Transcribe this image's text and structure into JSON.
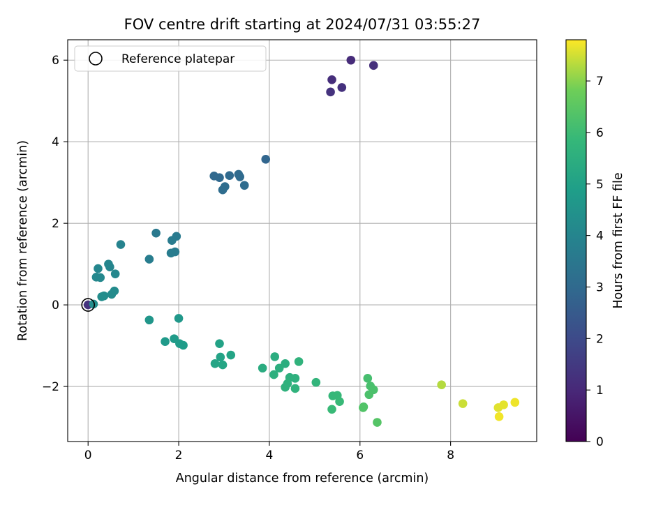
{
  "chart_data": {
    "type": "scatter",
    "title": "FOV centre drift starting at 2024/07/31 03:55:27",
    "xlabel": "Angular distance from reference (arcmin)",
    "ylabel": "Rotation from reference (arcmin)",
    "xlim": [
      -0.45,
      9.9
    ],
    "ylim": [
      -3.35,
      6.5
    ],
    "xticks": [
      0,
      2,
      4,
      6,
      8
    ],
    "yticks": [
      -2,
      0,
      2,
      4,
      6
    ],
    "xtick_labels": [
      "0",
      "2",
      "4",
      "6",
      "8"
    ],
    "ytick_labels": [
      "−2",
      "0",
      "2",
      "4",
      "6"
    ],
    "grid": true,
    "legend": {
      "placement": "top-left",
      "entries": [
        "Reference platepar"
      ]
    },
    "reference_point": {
      "x": 0,
      "y": 0
    },
    "colorbar": {
      "label": "Hours from first FF file",
      "range": [
        0,
        7.8
      ],
      "ticks": [
        0,
        1,
        2,
        3,
        4,
        5,
        6,
        7
      ],
      "tick_labels": [
        "0",
        "1",
        "2",
        "3",
        "4",
        "5",
        "6",
        "7"
      ],
      "colormap": "viridis"
    },
    "points": [
      {
        "x": 0,
        "y": 0,
        "h": 1.3
      },
      {
        "x": 5.8,
        "y": 6.0,
        "h": 1.1
      },
      {
        "x": 5.38,
        "y": 5.52,
        "h": 1.15
      },
      {
        "x": 6.3,
        "y": 5.87,
        "h": 1.2
      },
      {
        "x": 5.6,
        "y": 5.33,
        "h": 1.25
      },
      {
        "x": 5.35,
        "y": 5.22,
        "h": 1.3
      },
      {
        "x": 3.92,
        "y": 3.57,
        "h": 2.85
      },
      {
        "x": 2.78,
        "y": 3.16,
        "h": 2.95
      },
      {
        "x": 2.9,
        "y": 3.12,
        "h": 2.98
      },
      {
        "x": 3.12,
        "y": 3.17,
        "h": 3.0
      },
      {
        "x": 3.32,
        "y": 3.2,
        "h": 3.02
      },
      {
        "x": 3.35,
        "y": 3.14,
        "h": 3.05
      },
      {
        "x": 3.45,
        "y": 2.93,
        "h": 3.08
      },
      {
        "x": 3.02,
        "y": 2.9,
        "h": 3.1
      },
      {
        "x": 2.97,
        "y": 2.82,
        "h": 3.12
      },
      {
        "x": 1.5,
        "y": 1.76,
        "h": 3.55
      },
      {
        "x": 1.95,
        "y": 1.68,
        "h": 3.6
      },
      {
        "x": 1.85,
        "y": 1.58,
        "h": 3.62
      },
      {
        "x": 1.92,
        "y": 1.3,
        "h": 3.65
      },
      {
        "x": 1.83,
        "y": 1.27,
        "h": 3.68
      },
      {
        "x": 1.35,
        "y": 1.12,
        "h": 3.7
      },
      {
        "x": 0.72,
        "y": 1.48,
        "h": 3.95
      },
      {
        "x": 0.45,
        "y": 1.0,
        "h": 4.0
      },
      {
        "x": 0.48,
        "y": 0.93,
        "h": 4.02
      },
      {
        "x": 0.22,
        "y": 0.89,
        "h": 4.05
      },
      {
        "x": 0.6,
        "y": 0.76,
        "h": 4.07
      },
      {
        "x": 0.18,
        "y": 0.68,
        "h": 4.1
      },
      {
        "x": 0.27,
        "y": 0.67,
        "h": 4.12
      },
      {
        "x": 0.58,
        "y": 0.34,
        "h": 4.2
      },
      {
        "x": 0.52,
        "y": 0.26,
        "h": 4.22
      },
      {
        "x": 0.35,
        "y": 0.22,
        "h": 4.25
      },
      {
        "x": 0.3,
        "y": 0.2,
        "h": 4.27
      },
      {
        "x": 0.12,
        "y": 0.02,
        "h": 4.3
      },
      {
        "x": 1.35,
        "y": -0.37,
        "h": 4.6
      },
      {
        "x": 2.0,
        "y": -0.33,
        "h": 4.65
      },
      {
        "x": 1.7,
        "y": -0.9,
        "h": 4.75
      },
      {
        "x": 1.9,
        "y": -0.83,
        "h": 4.78
      },
      {
        "x": 2.02,
        "y": -0.95,
        "h": 4.8
      },
      {
        "x": 2.1,
        "y": -0.99,
        "h": 4.82
      },
      {
        "x": 2.9,
        "y": -0.95,
        "h": 5.05
      },
      {
        "x": 2.92,
        "y": -1.28,
        "h": 5.08
      },
      {
        "x": 3.15,
        "y": -1.23,
        "h": 5.1
      },
      {
        "x": 2.8,
        "y": -1.44,
        "h": 5.12
      },
      {
        "x": 2.97,
        "y": -1.47,
        "h": 5.15
      },
      {
        "x": 3.85,
        "y": -1.55,
        "h": 5.4
      },
      {
        "x": 4.12,
        "y": -1.27,
        "h": 5.45
      },
      {
        "x": 4.35,
        "y": -1.44,
        "h": 5.47
      },
      {
        "x": 4.22,
        "y": -1.55,
        "h": 5.5
      },
      {
        "x": 4.1,
        "y": -1.71,
        "h": 5.52
      },
      {
        "x": 4.45,
        "y": -1.78,
        "h": 5.55
      },
      {
        "x": 4.57,
        "y": -1.8,
        "h": 5.57
      },
      {
        "x": 4.4,
        "y": -1.93,
        "h": 5.6
      },
      {
        "x": 4.35,
        "y": -2.02,
        "h": 5.62
      },
      {
        "x": 4.57,
        "y": -2.05,
        "h": 5.65
      },
      {
        "x": 4.65,
        "y": -1.39,
        "h": 5.67
      },
      {
        "x": 5.03,
        "y": -1.9,
        "h": 5.75
      },
      {
        "x": 5.4,
        "y": -2.23,
        "h": 5.85
      },
      {
        "x": 5.5,
        "y": -2.22,
        "h": 5.87
      },
      {
        "x": 5.55,
        "y": -2.37,
        "h": 5.9
      },
      {
        "x": 5.38,
        "y": -2.56,
        "h": 5.92
      },
      {
        "x": 6.17,
        "y": -1.8,
        "h": 6.15
      },
      {
        "x": 6.23,
        "y": -1.99,
        "h": 6.2
      },
      {
        "x": 6.3,
        "y": -2.08,
        "h": 6.22
      },
      {
        "x": 6.2,
        "y": -2.2,
        "h": 6.25
      },
      {
        "x": 6.08,
        "y": -2.5,
        "h": 6.3
      },
      {
        "x": 6.07,
        "y": -2.52,
        "h": 6.35
      },
      {
        "x": 6.38,
        "y": -2.88,
        "h": 6.4
      },
      {
        "x": 7.8,
        "y": -1.96,
        "h": 7.3
      },
      {
        "x": 8.27,
        "y": -2.42,
        "h": 7.45
      },
      {
        "x": 9.05,
        "y": -2.52,
        "h": 7.6
      },
      {
        "x": 9.17,
        "y": -2.45,
        "h": 7.63
      },
      {
        "x": 9.42,
        "y": -2.39,
        "h": 7.7
      },
      {
        "x": 9.07,
        "y": -2.74,
        "h": 7.72
      }
    ]
  }
}
